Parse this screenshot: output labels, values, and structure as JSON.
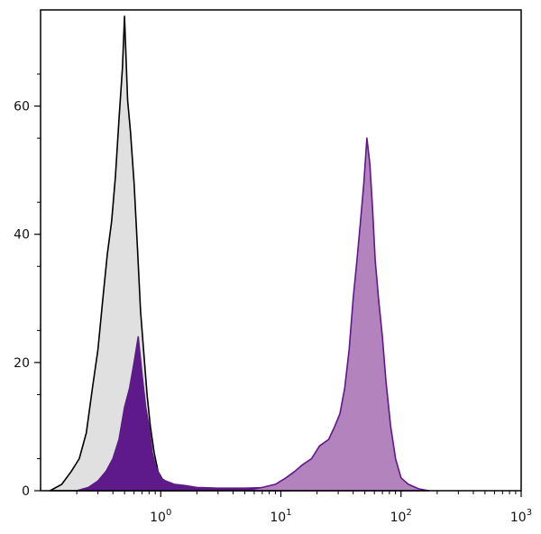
{
  "chart_data": {
    "type": "area",
    "x_scale": "log",
    "xlim": [
      0.1,
      1000
    ],
    "ylim": [
      0,
      75
    ],
    "grid": false,
    "xlabel": "",
    "ylabel": "",
    "x_ticks": [
      {
        "value": 1,
        "base": "10",
        "exp": "0"
      },
      {
        "value": 10,
        "base": "10",
        "exp": "1"
      },
      {
        "value": 100,
        "base": "10",
        "exp": "2"
      },
      {
        "value": 1000,
        "base": "10",
        "exp": "3"
      }
    ],
    "y_ticks": [
      {
        "value": 0,
        "label": "0"
      },
      {
        "value": 20,
        "label": "20"
      },
      {
        "value": 40,
        "label": "40"
      },
      {
        "value": 60,
        "label": "60"
      }
    ],
    "series": [
      {
        "fill": "#e0e0e0",
        "stroke": "#000000",
        "x": [
          0.12,
          0.15,
          0.18,
          0.21,
          0.24,
          0.27,
          0.3,
          0.33,
          0.36,
          0.39,
          0.42,
          0.45,
          0.48,
          0.5,
          0.53,
          0.56,
          0.6,
          0.64,
          0.68,
          0.72,
          0.77,
          0.82,
          0.88,
          0.95,
          1.05,
          1.2,
          1.5,
          2.0
        ],
        "y": [
          0,
          1,
          3,
          5,
          9,
          16,
          22,
          30,
          37,
          42,
          49,
          58,
          66,
          74,
          61,
          56,
          48,
          38,
          28,
          22,
          15,
          10,
          6,
          3,
          1.5,
          0.6,
          0.2,
          0
        ]
      },
      {
        "fill": "#5e1a8a",
        "stroke": "#5b1c86",
        "x": [
          0.2,
          0.25,
          0.3,
          0.35,
          0.4,
          0.45,
          0.5,
          0.55,
          0.6,
          0.65,
          0.7,
          0.75,
          0.8,
          0.85,
          0.9,
          1.0,
          1.1,
          1.3,
          1.6,
          2.0,
          3.0,
          5.0,
          8.0,
          10.0,
          12.0
        ],
        "y": [
          0,
          0.5,
          1.5,
          3,
          5,
          8,
          13,
          16,
          20,
          24,
          18,
          13,
          10,
          6,
          4,
          2,
          1.5,
          1,
          0.8,
          0.5,
          0.4,
          0.4,
          0.5,
          0.8,
          1
        ]
      },
      {
        "fill": "#b283bd",
        "stroke": "#62168c",
        "x": [
          5,
          7,
          9,
          11,
          13,
          15,
          18,
          21,
          25,
          28,
          31,
          34,
          37,
          40,
          43,
          46,
          49,
          52,
          55,
          58,
          61,
          65,
          70,
          75,
          82,
          90,
          100,
          115,
          140,
          170
        ],
        "y": [
          0,
          0.5,
          1,
          2,
          3,
          4,
          5,
          7,
          8,
          10,
          12,
          16,
          22,
          30,
          36,
          42,
          48,
          55,
          51,
          44,
          36,
          30,
          24,
          17,
          10,
          5,
          2,
          1,
          0.3,
          0
        ]
      }
    ]
  }
}
